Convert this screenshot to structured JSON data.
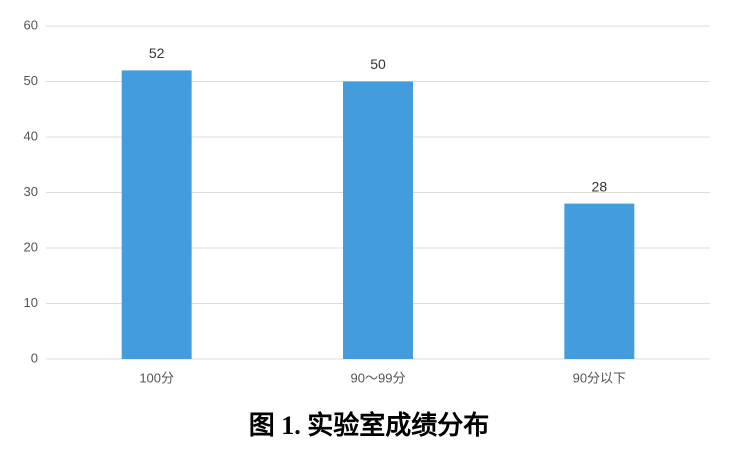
{
  "chart_data": {
    "type": "bar",
    "title": "图 1. 实验室成绩分布",
    "categories": [
      "100分",
      "90～99分",
      "90分以下"
    ],
    "values": [
      52,
      50,
      28
    ],
    "color": "#439cdb",
    "ylim": [
      0,
      60
    ],
    "yticks": [
      0,
      10,
      20,
      30,
      40,
      50,
      60
    ],
    "grid": true
  }
}
